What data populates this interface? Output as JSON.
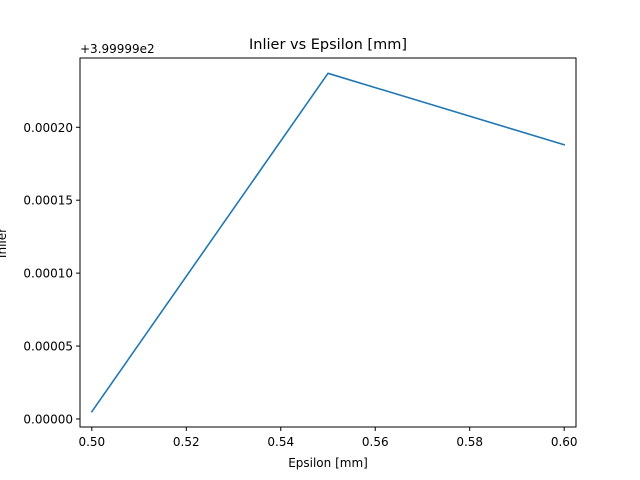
{
  "chart_data": {
    "type": "line",
    "title": "Inlier vs Epsilon [mm]",
    "xlabel": "Epsilon [mm]",
    "ylabel": "Inlier",
    "offset_label": "+3.99999e2",
    "offset_value": 399.999,
    "xlim": [
      0.4975,
      0.6025
    ],
    "ylim": [
      -5.5e-06,
      0.0002475
    ],
    "xticks": [
      0.5,
      0.52,
      0.54,
      0.56,
      0.58,
      0.6
    ],
    "xtick_labels": [
      "0.50",
      "0.52",
      "0.54",
      "0.56",
      "0.58",
      "0.60"
    ],
    "yticks": [
      0,
      5e-05,
      0.0001,
      0.00015,
      0.0002
    ],
    "ytick_labels": [
      "0.00000",
      "0.00005",
      "0.00010",
      "0.00015",
      "0.00020"
    ],
    "grid": false,
    "series": [
      {
        "color": "#1f77b4",
        "x": [
          0.5,
          0.55,
          0.6
        ],
        "y": [
          399.999005,
          399.999237,
          399.999188
        ]
      }
    ]
  }
}
